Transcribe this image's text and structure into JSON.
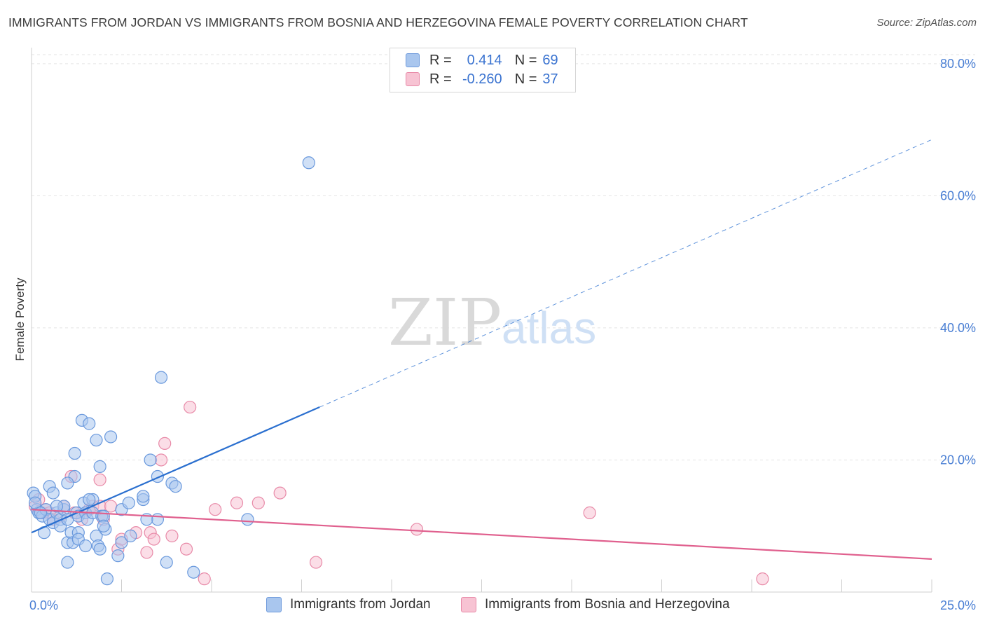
{
  "title": "IMMIGRANTS FROM JORDAN VS IMMIGRANTS FROM BOSNIA AND HERZEGOVINA FEMALE POVERTY CORRELATION CHART",
  "source": "Source: ZipAtlas.com",
  "watermark": {
    "zip": "ZIP",
    "atlas": "atlas"
  },
  "legend": {
    "r_label": "R =",
    "n_label": "N =",
    "rows": [
      {
        "r": "0.414",
        "n": "69",
        "color": "#a9c6ee",
        "border": "#6f9bdc"
      },
      {
        "r": "-0.260",
        "n": "37",
        "color": "#f7c3d3",
        "border": "#e88aa8"
      }
    ]
  },
  "bottom_legend": [
    {
      "label": "Immigrants from Jordan",
      "color": "#a9c6ee",
      "border": "#6f9bdc"
    },
    {
      "label": "Immigrants from Bosnia and Herzegovina",
      "color": "#f7c3d3",
      "border": "#e88aa8"
    }
  ],
  "chart_data": {
    "type": "scatter",
    "title": "IMMIGRANTS FROM JORDAN VS IMMIGRANTS FROM BOSNIA AND HERZEGOVINA FEMALE POVERTY CORRELATION CHART",
    "xlabel": "",
    "ylabel": "Female Poverty",
    "xlim": [
      0,
      25
    ],
    "ylim": [
      0,
      82
    ],
    "x_tick_labels": [
      "0.0%",
      "25.0%"
    ],
    "y_ticks": [
      20,
      40,
      60,
      80
    ],
    "y_tick_labels": [
      "20.0%",
      "40.0%",
      "60.0%",
      "80.0%"
    ],
    "colors": {
      "jordan_fill": "#a9c6ee",
      "jordan_edge": "#6a99dd",
      "jordan_line": "#2a6fcf",
      "bosnia_fill": "#f7c3d3",
      "bosnia_edge": "#e88aa8",
      "bosnia_line": "#e0608e"
    },
    "series": [
      {
        "name": "Immigrants from Jordan",
        "trend": {
          "x0": 0,
          "y0": 9.0,
          "x1": 8.0,
          "y1": 28.0,
          "dashed_to_x": 25,
          "dashed_to_y": 68.5
        },
        "points": [
          [
            0.05,
            15.0
          ],
          [
            0.1,
            14.5
          ],
          [
            0.15,
            12.5
          ],
          [
            0.2,
            12.0
          ],
          [
            0.3,
            11.5
          ],
          [
            0.35,
            9.0
          ],
          [
            0.4,
            12.5
          ],
          [
            0.5,
            11.0
          ],
          [
            0.5,
            16.0
          ],
          [
            0.6,
            10.5
          ],
          [
            0.6,
            15.0
          ],
          [
            0.7,
            12.0
          ],
          [
            0.8,
            11.0
          ],
          [
            0.8,
            10.0
          ],
          [
            0.9,
            12.5
          ],
          [
            0.9,
            13.0
          ],
          [
            1.0,
            11.0
          ],
          [
            1.0,
            7.5
          ],
          [
            1.0,
            4.5
          ],
          [
            1.1,
            9.0
          ],
          [
            1.15,
            7.5
          ],
          [
            1.2,
            21.0
          ],
          [
            1.2,
            17.5
          ],
          [
            1.25,
            12.0
          ],
          [
            1.3,
            9.0
          ],
          [
            1.3,
            8.0
          ],
          [
            1.3,
            11.5
          ],
          [
            1.4,
            26.0
          ],
          [
            1.45,
            13.5
          ],
          [
            1.5,
            7.0
          ],
          [
            1.5,
            12.0
          ],
          [
            1.55,
            11.0
          ],
          [
            1.6,
            25.5
          ],
          [
            1.7,
            14.0
          ],
          [
            1.7,
            12.0
          ],
          [
            1.8,
            23.0
          ],
          [
            1.8,
            8.5
          ],
          [
            1.85,
            7.0
          ],
          [
            1.9,
            6.5
          ],
          [
            1.9,
            19.0
          ],
          [
            1.95,
            11.5
          ],
          [
            2.0,
            11.5
          ],
          [
            2.05,
            9.5
          ],
          [
            2.1,
            2.0
          ],
          [
            2.2,
            23.5
          ],
          [
            2.4,
            5.5
          ],
          [
            2.5,
            7.5
          ],
          [
            2.5,
            12.5
          ],
          [
            2.7,
            13.5
          ],
          [
            2.75,
            8.5
          ],
          [
            3.1,
            14.0
          ],
          [
            3.1,
            14.5
          ],
          [
            3.3,
            20.0
          ],
          [
            3.5,
            17.5
          ],
          [
            3.5,
            11.0
          ],
          [
            3.6,
            32.5
          ],
          [
            3.75,
            4.5
          ],
          [
            3.9,
            16.5
          ],
          [
            4.0,
            16.0
          ],
          [
            4.5,
            3.0
          ],
          [
            6.0,
            11.0
          ],
          [
            7.7,
            65.0
          ],
          [
            0.1,
            13.5
          ],
          [
            0.25,
            12.0
          ],
          [
            1.0,
            16.5
          ],
          [
            2.0,
            10.0
          ],
          [
            3.2,
            11.0
          ],
          [
            0.7,
            13.0
          ],
          [
            1.6,
            14.0
          ]
        ]
      },
      {
        "name": "Immigrants from Bosnia and Herzegovina",
        "trend": {
          "x0": 0,
          "y0": 12.5,
          "x1": 25,
          "y1": 5.0
        },
        "points": [
          [
            0.1,
            13.0
          ],
          [
            0.2,
            14.0
          ],
          [
            0.3,
            12.0
          ],
          [
            0.4,
            12.5
          ],
          [
            0.5,
            12.0
          ],
          [
            0.6,
            11.0
          ],
          [
            0.8,
            11.5
          ],
          [
            0.9,
            13.0
          ],
          [
            1.1,
            17.5
          ],
          [
            1.2,
            12.0
          ],
          [
            1.4,
            11.0
          ],
          [
            1.6,
            12.5
          ],
          [
            1.7,
            13.0
          ],
          [
            1.9,
            13.0
          ],
          [
            1.9,
            17.0
          ],
          [
            2.0,
            11.0
          ],
          [
            2.2,
            13.0
          ],
          [
            2.4,
            6.5
          ],
          [
            2.5,
            8.0
          ],
          [
            2.9,
            9.0
          ],
          [
            3.2,
            6.0
          ],
          [
            3.3,
            9.0
          ],
          [
            3.4,
            8.0
          ],
          [
            3.6,
            20.0
          ],
          [
            3.7,
            22.5
          ],
          [
            3.9,
            8.5
          ],
          [
            4.3,
            6.5
          ],
          [
            4.4,
            28.0
          ],
          [
            4.8,
            2.0
          ],
          [
            5.1,
            12.5
          ],
          [
            5.7,
            13.5
          ],
          [
            6.3,
            13.5
          ],
          [
            6.9,
            15.0
          ],
          [
            7.9,
            4.5
          ],
          [
            10.7,
            9.5
          ],
          [
            15.5,
            12.0
          ],
          [
            20.3,
            2.0
          ]
        ]
      }
    ]
  }
}
